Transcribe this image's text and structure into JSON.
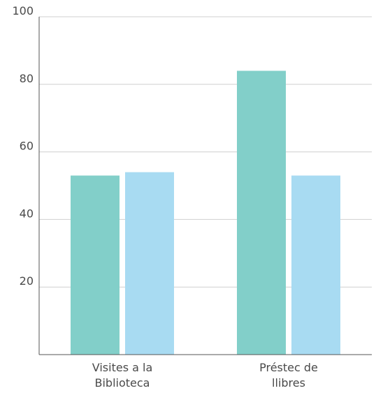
{
  "chart_data": {
    "type": "bar",
    "title": "",
    "xlabel": "",
    "ylabel": "",
    "ylim": [
      0,
      100
    ],
    "yticks": [
      20,
      40,
      60,
      80,
      100
    ],
    "grid": true,
    "legend": "none",
    "categories": [
      [
        "Visites a la",
        "Biblioteca"
      ],
      [
        "Préstec de",
        "llibres"
      ]
    ],
    "series": [
      {
        "values": [
          53,
          84
        ],
        "color": "#82cfc9"
      },
      {
        "values": [
          54,
          53
        ],
        "color": "#a8dbf2"
      }
    ]
  }
}
